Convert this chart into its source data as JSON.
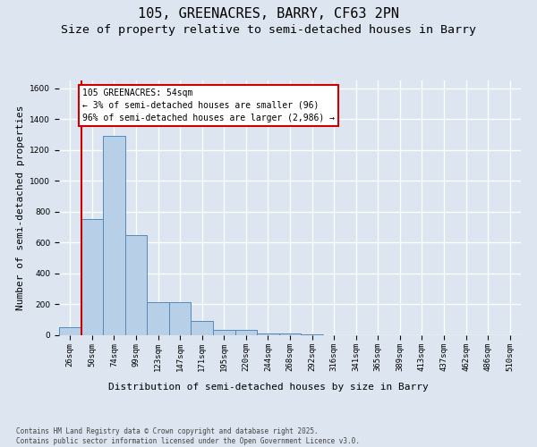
{
  "title1": "105, GREENACRES, BARRY, CF63 2PN",
  "title2": "Size of property relative to semi-detached houses in Barry",
  "xlabel": "Distribution of semi-detached houses by size in Barry",
  "ylabel": "Number of semi-detached properties",
  "categories": [
    "26sqm",
    "50sqm",
    "74sqm",
    "99sqm",
    "123sqm",
    "147sqm",
    "171sqm",
    "195sqm",
    "220sqm",
    "244sqm",
    "268sqm",
    "292sqm",
    "316sqm",
    "341sqm",
    "365sqm",
    "389sqm",
    "413sqm",
    "437sqm",
    "462sqm",
    "486sqm",
    "510sqm"
  ],
  "values": [
    55,
    750,
    1290,
    650,
    215,
    215,
    90,
    35,
    35,
    12,
    12,
    5,
    0,
    0,
    0,
    0,
    0,
    0,
    0,
    0,
    0
  ],
  "bar_color": "#b8cfe8",
  "bar_edge_color": "#5588bb",
  "vline_color": "#cc0000",
  "vline_x": 0.5,
  "annotation_text": "105 GREENACRES: 54sqm\n← 3% of semi-detached houses are smaller (96)\n96% of semi-detached houses are larger (2,986) →",
  "annotation_box_edgecolor": "#cc0000",
  "background_color": "#dde6f0",
  "plot_bg_color": "#dde6f0",
  "grid_color": "#ffffff",
  "footnote_line1": "Contains HM Land Registry data © Crown copyright and database right 2025.",
  "footnote_line2": "Contains public sector information licensed under the Open Government Licence v3.0.",
  "ylim": [
    0,
    1650
  ],
  "yticks": [
    0,
    200,
    400,
    600,
    800,
    1000,
    1200,
    1400,
    1600
  ],
  "title_fontsize": 11,
  "subtitle_fontsize": 9.5,
  "tick_fontsize": 6.5,
  "label_fontsize": 8,
  "annot_fontsize": 7,
  "footnote_fontsize": 5.5
}
